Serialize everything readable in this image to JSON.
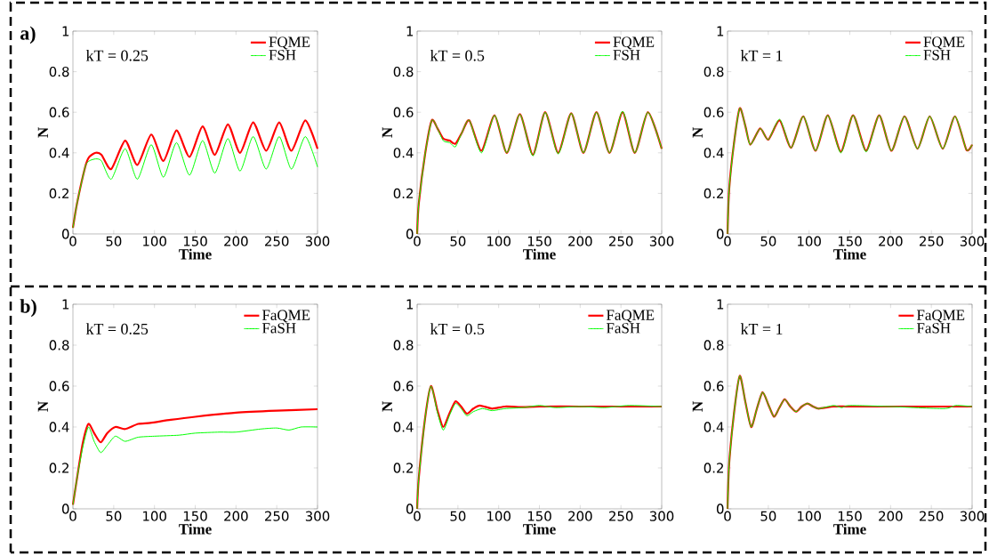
{
  "chart_data": [
    {
      "type": "line",
      "title": "a)",
      "annotations": [
        "kT = 0.25"
      ],
      "xlabel": "Time",
      "ylabel": "N",
      "xlim": [
        0,
        300
      ],
      "ylim": [
        0,
        1
      ],
      "xticks": [
        0,
        50,
        100,
        150,
        200,
        250,
        300
      ],
      "yticks": [
        0,
        0.2,
        0.4,
        0.6,
        0.8,
        1
      ],
      "legend": "top right",
      "series": [
        {
          "name": "FQME",
          "color": "#ff0000",
          "x": [
            0,
            5,
            15,
            20,
            28,
            35,
            47,
            64,
            79,
            96,
            111,
            127,
            143,
            159,
            174,
            190,
            205,
            221,
            237,
            253,
            268,
            285,
            300
          ],
          "values": [
            0.03,
            0.15,
            0.33,
            0.38,
            0.4,
            0.39,
            0.32,
            0.46,
            0.34,
            0.49,
            0.36,
            0.51,
            0.38,
            0.53,
            0.39,
            0.54,
            0.4,
            0.55,
            0.41,
            0.55,
            0.41,
            0.56,
            0.42
          ]
        },
        {
          "name": "FSH",
          "color": "#00ff00",
          "x": [
            0,
            5,
            15,
            20,
            28,
            35,
            47,
            64,
            79,
            96,
            111,
            127,
            143,
            159,
            174,
            190,
            205,
            221,
            237,
            253,
            268,
            285,
            300
          ],
          "values": [
            0.03,
            0.15,
            0.33,
            0.36,
            0.37,
            0.36,
            0.27,
            0.42,
            0.27,
            0.44,
            0.28,
            0.45,
            0.29,
            0.46,
            0.3,
            0.47,
            0.31,
            0.48,
            0.32,
            0.48,
            0.32,
            0.48,
            0.33
          ]
        }
      ]
    },
    {
      "type": "line",
      "annotations": [
        "kT = 0.5"
      ],
      "xlabel": "Time",
      "ylabel": "N",
      "xlim": [
        0,
        300
      ],
      "ylim": [
        0,
        1
      ],
      "xticks": [
        0,
        50,
        100,
        150,
        200,
        250,
        300
      ],
      "yticks": [
        0,
        0.2,
        0.4,
        0.6,
        0.8,
        1
      ],
      "legend": "top right",
      "series": [
        {
          "name": "FQME",
          "color": "#ff0000",
          "x": [
            0,
            2,
            10,
            18,
            25,
            32,
            40,
            47,
            55,
            64,
            79,
            95,
            110,
            126,
            142,
            157,
            173,
            189,
            204,
            220,
            236,
            252,
            267,
            283,
            300
          ],
          "values": [
            0,
            0.15,
            0.4,
            0.56,
            0.52,
            0.47,
            0.46,
            0.445,
            0.5,
            0.56,
            0.41,
            0.585,
            0.4,
            0.59,
            0.39,
            0.6,
            0.4,
            0.595,
            0.4,
            0.6,
            0.4,
            0.6,
            0.4,
            0.6,
            0.42
          ]
        },
        {
          "name": "FSH",
          "color": "#00ff00",
          "x": [
            0,
            2,
            10,
            18,
            25,
            32,
            40,
            47,
            55,
            64,
            79,
            95,
            110,
            126,
            142,
            157,
            173,
            189,
            204,
            220,
            236,
            252,
            267,
            283,
            300
          ],
          "values": [
            0,
            0.15,
            0.4,
            0.56,
            0.52,
            0.46,
            0.45,
            0.43,
            0.5,
            0.56,
            0.4,
            0.585,
            0.4,
            0.59,
            0.385,
            0.6,
            0.395,
            0.595,
            0.4,
            0.6,
            0.4,
            0.605,
            0.4,
            0.6,
            0.42
          ]
        }
      ]
    },
    {
      "type": "line",
      "annotations": [
        "kT = 1"
      ],
      "xlabel": "Time",
      "ylabel": "N",
      "xlim": [
        0,
        300
      ],
      "ylim": [
        0,
        1
      ],
      "xticks": [
        0,
        50,
        100,
        150,
        200,
        250,
        300
      ],
      "yticks": [
        0,
        0.2,
        0.4,
        0.6,
        0.8,
        1
      ],
      "legend": "top right",
      "series": [
        {
          "name": "FQME",
          "color": "#ff0000",
          "x": [
            0,
            2,
            8,
            15,
            22,
            28,
            40,
            50,
            64,
            78,
            93,
            108,
            123,
            139,
            154,
            170,
            186,
            201,
            217,
            233,
            248,
            264,
            279,
            293,
            300
          ],
          "values": [
            0,
            0.22,
            0.45,
            0.62,
            0.53,
            0.44,
            0.52,
            0.465,
            0.56,
            0.425,
            0.58,
            0.41,
            0.585,
            0.405,
            0.585,
            0.41,
            0.585,
            0.41,
            0.58,
            0.42,
            0.58,
            0.42,
            0.58,
            0.415,
            0.44
          ]
        },
        {
          "name": "FSH",
          "color": "#00ff00",
          "x": [
            0,
            2,
            8,
            15,
            22,
            28,
            40,
            50,
            64,
            78,
            93,
            108,
            123,
            139,
            154,
            170,
            186,
            201,
            217,
            233,
            248,
            264,
            279,
            293,
            300
          ],
          "values": [
            0,
            0.22,
            0.45,
            0.62,
            0.53,
            0.44,
            0.52,
            0.465,
            0.565,
            0.425,
            0.58,
            0.41,
            0.585,
            0.4,
            0.585,
            0.405,
            0.585,
            0.41,
            0.58,
            0.42,
            0.58,
            0.42,
            0.58,
            0.415,
            0.44
          ]
        }
      ]
    },
    {
      "type": "line",
      "title": "b)",
      "annotations": [
        "kT = 0.25"
      ],
      "xlabel": "Time",
      "ylabel": "N",
      "xlim": [
        0,
        300
      ],
      "ylim": [
        0,
        1
      ],
      "xticks": [
        0,
        50,
        100,
        150,
        200,
        250,
        300
      ],
      "yticks": [
        0,
        0.2,
        0.4,
        0.6,
        0.8,
        1
      ],
      "legend": "top right",
      "series": [
        {
          "name": "FaQME",
          "color": "#ff0000",
          "x": [
            0,
            5,
            12,
            19,
            26,
            34,
            42,
            52,
            64,
            80,
            95,
            120,
            150,
            200,
            250,
            300
          ],
          "values": [
            0.02,
            0.15,
            0.32,
            0.415,
            0.37,
            0.325,
            0.37,
            0.4,
            0.39,
            0.415,
            0.42,
            0.435,
            0.45,
            0.47,
            0.48,
            0.487
          ]
        },
        {
          "name": "FaSH",
          "color": "#00ff00",
          "x": [
            0,
            5,
            12,
            19,
            26,
            34,
            42,
            52,
            64,
            80,
            100,
            130,
            150,
            180,
            200,
            230,
            250,
            265,
            280,
            300
          ],
          "values": [
            0.02,
            0.15,
            0.3,
            0.4,
            0.33,
            0.275,
            0.31,
            0.355,
            0.33,
            0.35,
            0.355,
            0.36,
            0.37,
            0.375,
            0.375,
            0.39,
            0.395,
            0.385,
            0.4,
            0.4
          ]
        }
      ]
    },
    {
      "type": "line",
      "annotations": [
        "kT = 0.5"
      ],
      "xlabel": "Time",
      "ylabel": "N",
      "xlim": [
        0,
        300
      ],
      "ylim": [
        0,
        1
      ],
      "xticks": [
        0,
        50,
        100,
        150,
        200,
        250,
        300
      ],
      "yticks": [
        0,
        0.2,
        0.4,
        0.6,
        0.8,
        1
      ],
      "legend": "top right",
      "series": [
        {
          "name": "FaQME",
          "color": "#ff0000",
          "x": [
            0,
            2,
            10,
            17,
            25,
            32,
            40,
            47,
            54,
            61,
            69,
            77,
            92,
            108,
            130,
            150,
            200,
            250,
            300
          ],
          "values": [
            0,
            0.15,
            0.45,
            0.6,
            0.48,
            0.4,
            0.47,
            0.525,
            0.5,
            0.465,
            0.49,
            0.505,
            0.49,
            0.5,
            0.497,
            0.5,
            0.5,
            0.5,
            0.5
          ]
        },
        {
          "name": "FaSH",
          "color": "#00ff00",
          "x": [
            0,
            2,
            10,
            17,
            25,
            32,
            40,
            47,
            54,
            61,
            69,
            80,
            92,
            108,
            130,
            150,
            170,
            200,
            230,
            260,
            300
          ],
          "values": [
            0,
            0.15,
            0.45,
            0.6,
            0.47,
            0.385,
            0.46,
            0.515,
            0.49,
            0.455,
            0.475,
            0.49,
            0.48,
            0.49,
            0.495,
            0.505,
            0.495,
            0.5,
            0.495,
            0.505,
            0.5
          ]
        }
      ]
    },
    {
      "type": "line",
      "annotations": [
        "kT = 1"
      ],
      "xlabel": "Time",
      "ylabel": "N",
      "xlim": [
        0,
        300
      ],
      "ylim": [
        0,
        1
      ],
      "xticks": [
        0,
        50,
        100,
        150,
        200,
        250,
        300
      ],
      "yticks": [
        0,
        0.2,
        0.4,
        0.6,
        0.8,
        1
      ],
      "legend": "top right",
      "series": [
        {
          "name": "FaQME",
          "color": "#ff0000",
          "x": [
            0,
            2,
            8,
            15,
            22,
            29,
            36,
            43,
            50,
            57,
            63,
            70,
            77,
            84,
            91,
            98,
            105,
            112,
            130,
            150,
            200,
            250,
            300
          ],
          "values": [
            0,
            0.22,
            0.47,
            0.65,
            0.52,
            0.4,
            0.49,
            0.57,
            0.51,
            0.45,
            0.49,
            0.535,
            0.5,
            0.475,
            0.5,
            0.515,
            0.5,
            0.49,
            0.5,
            0.5,
            0.5,
            0.5,
            0.5
          ]
        },
        {
          "name": "FaSH",
          "color": "#00ff00",
          "x": [
            0,
            2,
            8,
            15,
            22,
            29,
            36,
            43,
            50,
            57,
            63,
            70,
            77,
            84,
            91,
            98,
            105,
            112,
            130,
            140,
            150,
            200,
            265,
            280,
            300
          ],
          "values": [
            0,
            0.22,
            0.47,
            0.65,
            0.52,
            0.4,
            0.49,
            0.57,
            0.51,
            0.45,
            0.49,
            0.535,
            0.5,
            0.475,
            0.5,
            0.515,
            0.5,
            0.49,
            0.505,
            0.495,
            0.505,
            0.5,
            0.49,
            0.505,
            0.5
          ]
        }
      ]
    }
  ]
}
